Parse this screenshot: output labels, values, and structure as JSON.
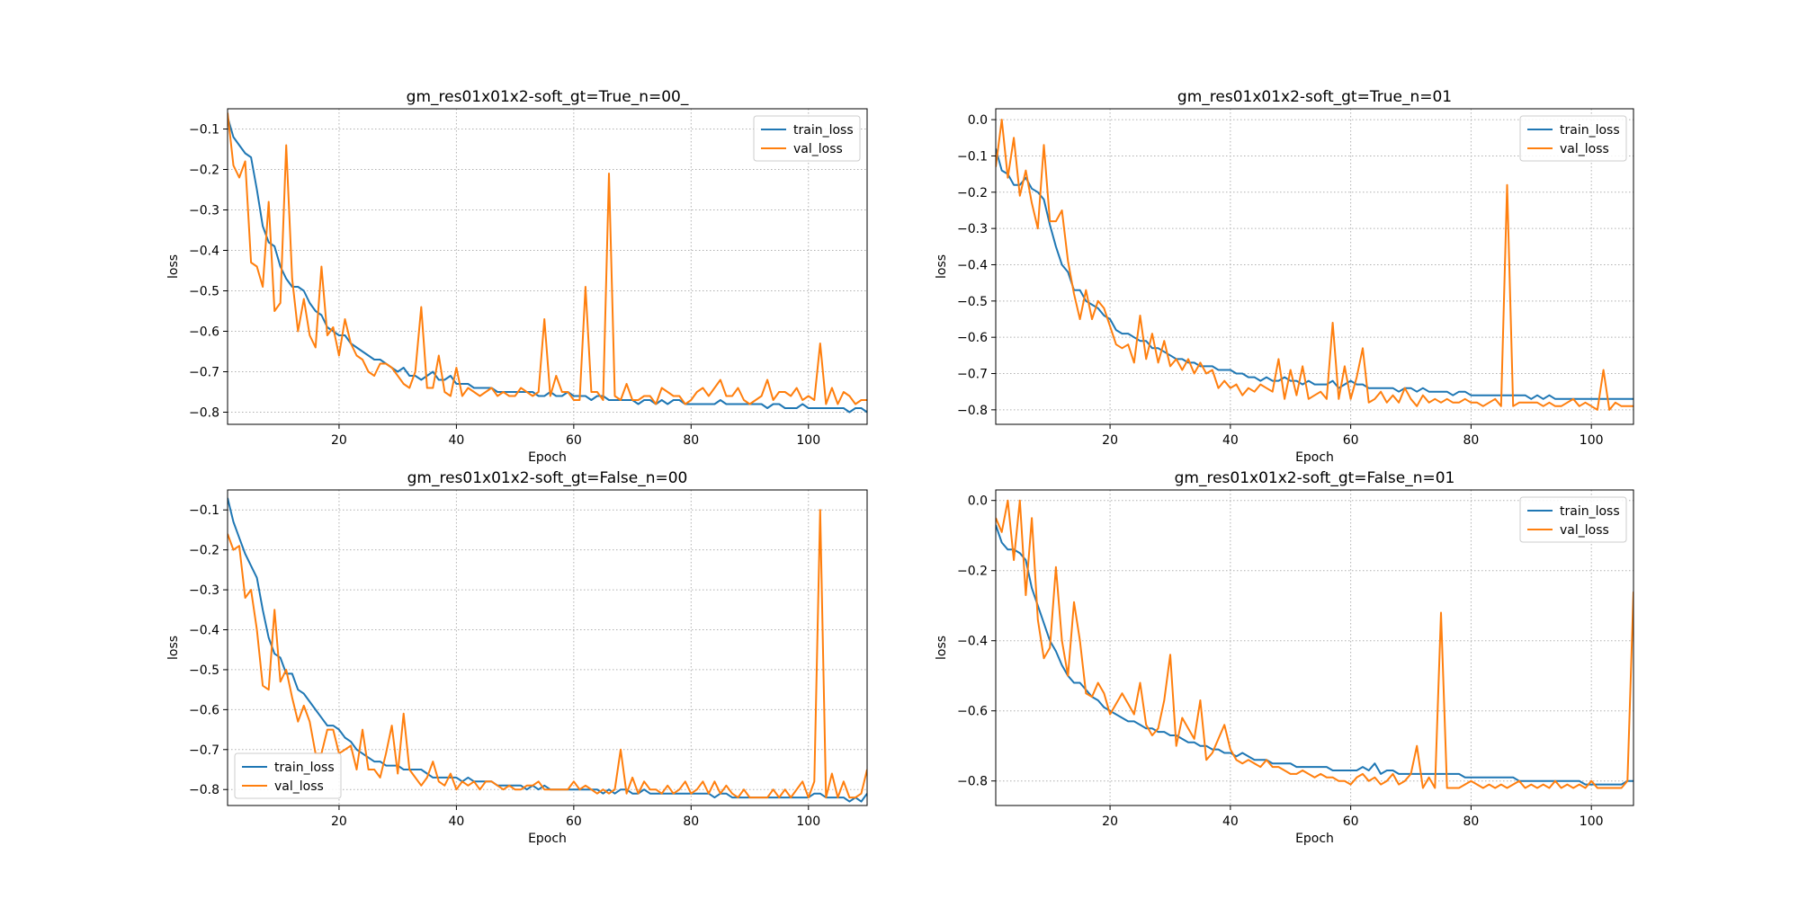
{
  "colors": {
    "train": "#1f77b4",
    "val": "#ff7f0e",
    "grid": "#b0b0b0",
    "axes": "#000000"
  },
  "chart_data": [
    {
      "type": "line",
      "title": "gm_res01x01x2-soft_gt=True_n=00_",
      "xlabel": "Epoch",
      "ylabel": "loss",
      "xlim": [
        1,
        110
      ],
      "ylim": [
        -0.83,
        -0.05
      ],
      "xticks": [
        20,
        40,
        60,
        80,
        100
      ],
      "yticks": [
        -0.8,
        -0.7,
        -0.6,
        -0.5,
        -0.4,
        -0.3,
        -0.2,
        -0.1
      ],
      "grid": true,
      "legend": "top-right",
      "series": [
        {
          "name": "train_loss",
          "values": [
            -0.07,
            -0.12,
            -0.14,
            -0.16,
            -0.17,
            -0.25,
            -0.34,
            -0.38,
            -0.39,
            -0.44,
            -0.47,
            -0.49,
            -0.49,
            -0.5,
            -0.53,
            -0.55,
            -0.56,
            -0.59,
            -0.6,
            -0.61,
            -0.61,
            -0.63,
            -0.64,
            -0.65,
            -0.66,
            -0.67,
            -0.67,
            -0.68,
            -0.69,
            -0.7,
            -0.69,
            -0.71,
            -0.71,
            -0.72,
            -0.71,
            -0.7,
            -0.72,
            -0.72,
            -0.71,
            -0.73,
            -0.73,
            -0.73,
            -0.74,
            -0.74,
            -0.74,
            -0.74,
            -0.75,
            -0.75,
            -0.75,
            -0.75,
            -0.75,
            -0.75,
            -0.75,
            -0.76,
            -0.76,
            -0.75,
            -0.76,
            -0.76,
            -0.75,
            -0.76,
            -0.76,
            -0.76,
            -0.77,
            -0.76,
            -0.76,
            -0.77,
            -0.77,
            -0.77,
            -0.77,
            -0.77,
            -0.78,
            -0.77,
            -0.77,
            -0.78,
            -0.77,
            -0.78,
            -0.77,
            -0.77,
            -0.78,
            -0.78,
            -0.78,
            -0.78,
            -0.78,
            -0.78,
            -0.77,
            -0.78,
            -0.78,
            -0.78,
            -0.78,
            -0.78,
            -0.78,
            -0.78,
            -0.79,
            -0.78,
            -0.78,
            -0.79,
            -0.79,
            -0.79,
            -0.78,
            -0.79,
            -0.79,
            -0.79,
            -0.79,
            -0.79,
            -0.79,
            -0.79,
            -0.8,
            -0.79,
            -0.79,
            -0.8
          ]
        },
        {
          "name": "val_loss",
          "values": [
            -0.06,
            -0.19,
            -0.22,
            -0.18,
            -0.43,
            -0.44,
            -0.49,
            -0.28,
            -0.55,
            -0.53,
            -0.14,
            -0.47,
            -0.6,
            -0.52,
            -0.61,
            -0.64,
            -0.44,
            -0.61,
            -0.59,
            -0.66,
            -0.57,
            -0.63,
            -0.66,
            -0.67,
            -0.7,
            -0.71,
            -0.68,
            -0.68,
            -0.69,
            -0.71,
            -0.73,
            -0.74,
            -0.7,
            -0.54,
            -0.74,
            -0.74,
            -0.66,
            -0.75,
            -0.76,
            -0.69,
            -0.76,
            -0.74,
            -0.75,
            -0.76,
            -0.75,
            -0.74,
            -0.76,
            -0.75,
            -0.76,
            -0.76,
            -0.74,
            -0.75,
            -0.76,
            -0.75,
            -0.57,
            -0.76,
            -0.71,
            -0.75,
            -0.75,
            -0.77,
            -0.77,
            -0.49,
            -0.75,
            -0.75,
            -0.77,
            -0.21,
            -0.76,
            -0.77,
            -0.73,
            -0.77,
            -0.77,
            -0.76,
            -0.76,
            -0.78,
            -0.74,
            -0.75,
            -0.76,
            -0.76,
            -0.78,
            -0.77,
            -0.75,
            -0.74,
            -0.76,
            -0.74,
            -0.72,
            -0.76,
            -0.76,
            -0.74,
            -0.77,
            -0.78,
            -0.77,
            -0.76,
            -0.72,
            -0.77,
            -0.75,
            -0.75,
            -0.76,
            -0.74,
            -0.77,
            -0.76,
            -0.77,
            -0.63,
            -0.78,
            -0.74,
            -0.78,
            -0.75,
            -0.76,
            -0.78,
            -0.77,
            -0.77
          ]
        }
      ]
    },
    {
      "type": "line",
      "title": "gm_res01x01x2-soft_gt=True_n=01",
      "xlabel": "Epoch",
      "ylabel": "loss",
      "xlim": [
        1,
        107
      ],
      "ylim": [
        -0.84,
        0.03
      ],
      "xticks": [
        20,
        40,
        60,
        80,
        100
      ],
      "yticks": [
        -0.8,
        -0.7,
        -0.6,
        -0.5,
        -0.4,
        -0.3,
        -0.2,
        -0.1,
        0.0
      ],
      "grid": true,
      "legend": "top-right",
      "series": [
        {
          "name": "train_loss",
          "values": [
            -0.08,
            -0.14,
            -0.15,
            -0.18,
            -0.18,
            -0.16,
            -0.19,
            -0.2,
            -0.22,
            -0.29,
            -0.35,
            -0.4,
            -0.42,
            -0.47,
            -0.47,
            -0.5,
            -0.51,
            -0.52,
            -0.54,
            -0.55,
            -0.58,
            -0.59,
            -0.59,
            -0.6,
            -0.61,
            -0.61,
            -0.63,
            -0.63,
            -0.64,
            -0.65,
            -0.66,
            -0.66,
            -0.67,
            -0.67,
            -0.68,
            -0.68,
            -0.68,
            -0.69,
            -0.69,
            -0.69,
            -0.7,
            -0.7,
            -0.71,
            -0.71,
            -0.72,
            -0.71,
            -0.72,
            -0.72,
            -0.71,
            -0.72,
            -0.72,
            -0.73,
            -0.72,
            -0.73,
            -0.73,
            -0.73,
            -0.72,
            -0.74,
            -0.73,
            -0.72,
            -0.73,
            -0.73,
            -0.74,
            -0.74,
            -0.74,
            -0.74,
            -0.74,
            -0.75,
            -0.74,
            -0.74,
            -0.75,
            -0.74,
            -0.75,
            -0.75,
            -0.75,
            -0.75,
            -0.76,
            -0.75,
            -0.75,
            -0.76,
            -0.76,
            -0.76,
            -0.76,
            -0.76,
            -0.76,
            -0.76,
            -0.76,
            -0.76,
            -0.76,
            -0.77,
            -0.76,
            -0.77,
            -0.76,
            -0.77,
            -0.77,
            -0.77,
            -0.77,
            -0.77,
            -0.77,
            -0.77,
            -0.77,
            -0.77,
            -0.77,
            -0.77,
            -0.77,
            -0.77,
            -0.77
          ]
        },
        {
          "name": "val_loss",
          "values": [
            -0.13,
            0.0,
            -0.16,
            -0.05,
            -0.21,
            -0.14,
            -0.23,
            -0.3,
            -0.07,
            -0.28,
            -0.28,
            -0.25,
            -0.39,
            -0.48,
            -0.55,
            -0.47,
            -0.55,
            -0.5,
            -0.52,
            -0.57,
            -0.62,
            -0.63,
            -0.62,
            -0.67,
            -0.54,
            -0.66,
            -0.59,
            -0.67,
            -0.61,
            -0.68,
            -0.66,
            -0.69,
            -0.66,
            -0.7,
            -0.67,
            -0.7,
            -0.69,
            -0.74,
            -0.72,
            -0.74,
            -0.73,
            -0.76,
            -0.74,
            -0.75,
            -0.73,
            -0.74,
            -0.75,
            -0.66,
            -0.77,
            -0.69,
            -0.76,
            -0.68,
            -0.77,
            -0.76,
            -0.75,
            -0.77,
            -0.56,
            -0.77,
            -0.68,
            -0.77,
            -0.71,
            -0.63,
            -0.78,
            -0.77,
            -0.75,
            -0.78,
            -0.76,
            -0.78,
            -0.74,
            -0.77,
            -0.79,
            -0.76,
            -0.78,
            -0.77,
            -0.78,
            -0.77,
            -0.78,
            -0.78,
            -0.77,
            -0.78,
            -0.78,
            -0.79,
            -0.78,
            -0.77,
            -0.79,
            -0.18,
            -0.79,
            -0.78,
            -0.78,
            -0.78,
            -0.78,
            -0.79,
            -0.78,
            -0.79,
            -0.79,
            -0.78,
            -0.77,
            -0.79,
            -0.78,
            -0.79,
            -0.8,
            -0.69,
            -0.8,
            -0.78,
            -0.79,
            -0.79,
            -0.79
          ]
        }
      ]
    },
    {
      "type": "line",
      "title": "gm_res01x01x2-soft_gt=False_n=00",
      "xlabel": "Epoch",
      "ylabel": "loss",
      "xlim": [
        1,
        110
      ],
      "ylim": [
        -0.84,
        -0.05
      ],
      "xticks": [
        20,
        40,
        60,
        80,
        100
      ],
      "yticks": [
        -0.8,
        -0.7,
        -0.6,
        -0.5,
        -0.4,
        -0.3,
        -0.2,
        -0.1
      ],
      "grid": true,
      "legend": "bottom-left",
      "series": [
        {
          "name": "train_loss",
          "values": [
            -0.07,
            -0.13,
            -0.17,
            -0.21,
            -0.24,
            -0.27,
            -0.35,
            -0.42,
            -0.46,
            -0.47,
            -0.51,
            -0.51,
            -0.55,
            -0.56,
            -0.58,
            -0.6,
            -0.62,
            -0.64,
            -0.64,
            -0.65,
            -0.67,
            -0.68,
            -0.7,
            -0.71,
            -0.72,
            -0.73,
            -0.73,
            -0.74,
            -0.74,
            -0.74,
            -0.75,
            -0.75,
            -0.75,
            -0.75,
            -0.76,
            -0.77,
            -0.77,
            -0.77,
            -0.77,
            -0.77,
            -0.78,
            -0.77,
            -0.78,
            -0.78,
            -0.78,
            -0.78,
            -0.79,
            -0.79,
            -0.79,
            -0.79,
            -0.79,
            -0.8,
            -0.79,
            -0.8,
            -0.79,
            -0.8,
            -0.8,
            -0.8,
            -0.8,
            -0.8,
            -0.8,
            -0.8,
            -0.8,
            -0.8,
            -0.81,
            -0.8,
            -0.81,
            -0.8,
            -0.8,
            -0.81,
            -0.81,
            -0.8,
            -0.81,
            -0.81,
            -0.81,
            -0.81,
            -0.81,
            -0.81,
            -0.81,
            -0.81,
            -0.81,
            -0.81,
            -0.81,
            -0.82,
            -0.81,
            -0.81,
            -0.82,
            -0.82,
            -0.82,
            -0.82,
            -0.82,
            -0.82,
            -0.82,
            -0.82,
            -0.82,
            -0.82,
            -0.82,
            -0.82,
            -0.82,
            -0.82,
            -0.81,
            -0.81,
            -0.82,
            -0.82,
            -0.82,
            -0.82,
            -0.83,
            -0.82,
            -0.83,
            -0.81
          ]
        },
        {
          "name": "val_loss",
          "values": [
            -0.16,
            -0.2,
            -0.19,
            -0.32,
            -0.3,
            -0.4,
            -0.54,
            -0.55,
            -0.35,
            -0.53,
            -0.5,
            -0.57,
            -0.63,
            -0.59,
            -0.63,
            -0.71,
            -0.71,
            -0.65,
            -0.65,
            -0.71,
            -0.7,
            -0.69,
            -0.75,
            -0.65,
            -0.75,
            -0.75,
            -0.77,
            -0.71,
            -0.64,
            -0.76,
            -0.61,
            -0.75,
            -0.77,
            -0.79,
            -0.77,
            -0.73,
            -0.78,
            -0.79,
            -0.76,
            -0.8,
            -0.78,
            -0.79,
            -0.78,
            -0.8,
            -0.78,
            -0.78,
            -0.79,
            -0.8,
            -0.79,
            -0.8,
            -0.8,
            -0.79,
            -0.79,
            -0.78,
            -0.8,
            -0.8,
            -0.8,
            -0.8,
            -0.8,
            -0.78,
            -0.8,
            -0.79,
            -0.8,
            -0.81,
            -0.8,
            -0.81,
            -0.8,
            -0.7,
            -0.81,
            -0.77,
            -0.81,
            -0.78,
            -0.8,
            -0.8,
            -0.81,
            -0.79,
            -0.81,
            -0.8,
            -0.78,
            -0.81,
            -0.8,
            -0.78,
            -0.81,
            -0.78,
            -0.81,
            -0.79,
            -0.81,
            -0.82,
            -0.8,
            -0.82,
            -0.82,
            -0.82,
            -0.82,
            -0.8,
            -0.82,
            -0.8,
            -0.82,
            -0.8,
            -0.78,
            -0.82,
            -0.78,
            -0.1,
            -0.82,
            -0.76,
            -0.82,
            -0.78,
            -0.82,
            -0.82,
            -0.81,
            -0.75
          ]
        }
      ]
    },
    {
      "type": "line",
      "title": "gm_res01x01x2-soft_gt=False_n=01",
      "xlabel": "Epoch",
      "ylabel": "loss",
      "xlim": [
        1,
        107
      ],
      "ylim": [
        -0.87,
        0.03
      ],
      "xticks": [
        20,
        40,
        60,
        80,
        100
      ],
      "yticks": [
        -0.8,
        -0.6,
        -0.4,
        -0.2,
        0.0
      ],
      "grid": true,
      "legend": "top-right",
      "series": [
        {
          "name": "train_loss",
          "values": [
            -0.07,
            -0.12,
            -0.14,
            -0.14,
            -0.15,
            -0.17,
            -0.25,
            -0.3,
            -0.35,
            -0.4,
            -0.43,
            -0.47,
            -0.5,
            -0.52,
            -0.52,
            -0.54,
            -0.56,
            -0.57,
            -0.59,
            -0.6,
            -0.61,
            -0.62,
            -0.63,
            -0.63,
            -0.64,
            -0.65,
            -0.65,
            -0.66,
            -0.66,
            -0.67,
            -0.67,
            -0.68,
            -0.69,
            -0.69,
            -0.7,
            -0.7,
            -0.71,
            -0.71,
            -0.72,
            -0.72,
            -0.73,
            -0.72,
            -0.73,
            -0.74,
            -0.74,
            -0.74,
            -0.75,
            -0.75,
            -0.75,
            -0.75,
            -0.76,
            -0.76,
            -0.76,
            -0.76,
            -0.76,
            -0.76,
            -0.77,
            -0.77,
            -0.77,
            -0.77,
            -0.77,
            -0.76,
            -0.77,
            -0.75,
            -0.78,
            -0.77,
            -0.77,
            -0.78,
            -0.78,
            -0.78,
            -0.78,
            -0.78,
            -0.78,
            -0.78,
            -0.78,
            -0.78,
            -0.78,
            -0.78,
            -0.79,
            -0.79,
            -0.79,
            -0.79,
            -0.79,
            -0.79,
            -0.79,
            -0.79,
            -0.79,
            -0.8,
            -0.8,
            -0.8,
            -0.8,
            -0.8,
            -0.8,
            -0.8,
            -0.8,
            -0.8,
            -0.8,
            -0.8,
            -0.81,
            -0.81,
            -0.81,
            -0.81,
            -0.81,
            -0.81,
            -0.81,
            -0.8,
            -0.8
          ]
        },
        {
          "name": "val_loss",
          "values": [
            -0.05,
            -0.09,
            0.0,
            -0.17,
            0.0,
            -0.27,
            -0.05,
            -0.34,
            -0.45,
            -0.42,
            -0.19,
            -0.4,
            -0.5,
            -0.29,
            -0.4,
            -0.55,
            -0.56,
            -0.52,
            -0.55,
            -0.61,
            -0.58,
            -0.55,
            -0.58,
            -0.61,
            -0.52,
            -0.64,
            -0.67,
            -0.65,
            -0.57,
            -0.44,
            -0.7,
            -0.62,
            -0.65,
            -0.68,
            -0.57,
            -0.74,
            -0.72,
            -0.68,
            -0.64,
            -0.71,
            -0.74,
            -0.75,
            -0.74,
            -0.75,
            -0.76,
            -0.74,
            -0.76,
            -0.76,
            -0.77,
            -0.78,
            -0.78,
            -0.77,
            -0.78,
            -0.79,
            -0.78,
            -0.79,
            -0.79,
            -0.8,
            -0.8,
            -0.81,
            -0.79,
            -0.78,
            -0.8,
            -0.79,
            -0.81,
            -0.8,
            -0.78,
            -0.81,
            -0.8,
            -0.78,
            -0.7,
            -0.82,
            -0.79,
            -0.82,
            -0.32,
            -0.82,
            -0.82,
            -0.82,
            -0.81,
            -0.8,
            -0.81,
            -0.82,
            -0.81,
            -0.82,
            -0.81,
            -0.82,
            -0.81,
            -0.8,
            -0.82,
            -0.81,
            -0.82,
            -0.81,
            -0.82,
            -0.8,
            -0.82,
            -0.81,
            -0.82,
            -0.81,
            -0.82,
            -0.8,
            -0.82,
            -0.82,
            -0.82,
            -0.82,
            -0.82,
            -0.8,
            -0.26
          ]
        }
      ]
    }
  ]
}
